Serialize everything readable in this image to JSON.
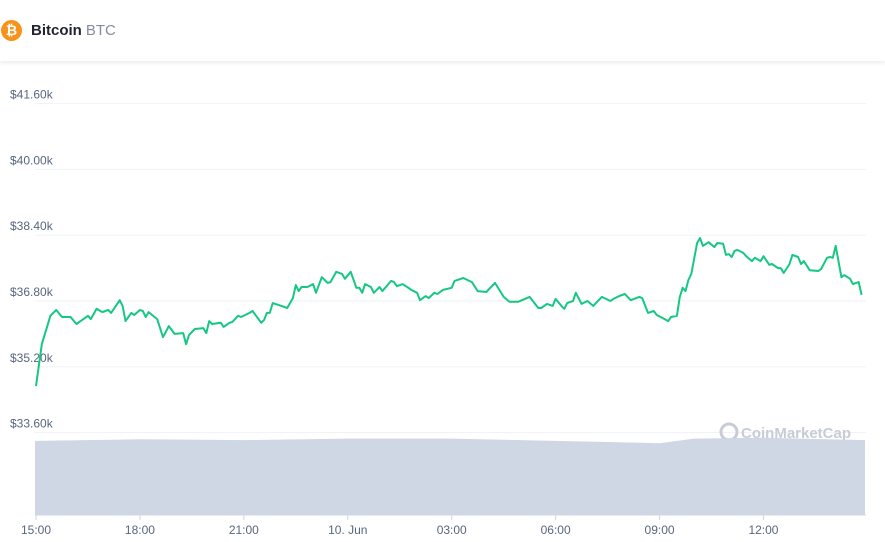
{
  "header": {
    "coin_name": "Bitcoin",
    "coin_symbol": "BTC",
    "coin_icon": "bitcoin-icon",
    "coin_icon_glyph": "₿"
  },
  "watermark": "CoinMarketCap",
  "colors": {
    "price_line": "#16c784",
    "volume_area": "#cfd6e4",
    "grid": "#eff2f5",
    "coin": "#f7931a"
  },
  "chart_data": {
    "type": "line",
    "title": "",
    "xlabel": "",
    "ylabel": "",
    "ylim": [
      33600,
      41600
    ],
    "y_ticks": [
      33600,
      35200,
      36800,
      38400,
      40000,
      41600
    ],
    "y_tick_labels": [
      "$33.60k",
      "$35.20k",
      "$36.80k",
      "$38.40k",
      "$40.00k",
      "$41.60k"
    ],
    "x_ticks": [
      "15:00",
      "18:00",
      "21:00",
      "00:00",
      "03:00",
      "06:00",
      "09:00",
      "12:00"
    ],
    "x_tick_labels": [
      "15:00",
      "18:00",
      "21:00",
      "10. Jun",
      "03:00",
      "06:00",
      "09:00",
      "12:00"
    ],
    "grid": "horizontal",
    "series": [
      {
        "points": [
          [
            "15:00",
            34730
          ],
          [
            "15:10",
            35750
          ],
          [
            "15:25",
            36440
          ],
          [
            "15:35",
            36580
          ],
          [
            "15:45",
            36410
          ],
          [
            "16:00",
            36410
          ],
          [
            "16:10",
            36240
          ],
          [
            "16:20",
            36340
          ],
          [
            "16:30",
            36440
          ],
          [
            "16:35",
            36360
          ],
          [
            "16:45",
            36610
          ],
          [
            "16:55",
            36530
          ],
          [
            "17:05",
            36580
          ],
          [
            "17:10",
            36510
          ],
          [
            "17:15",
            36610
          ],
          [
            "17:25",
            36820
          ],
          [
            "17:30",
            36680
          ],
          [
            "17:35",
            36310
          ],
          [
            "17:45",
            36510
          ],
          [
            "17:50",
            36460
          ],
          [
            "18:00",
            36580
          ],
          [
            "18:05",
            36560
          ],
          [
            "18:10",
            36410
          ],
          [
            "18:15",
            36530
          ],
          [
            "18:30",
            36360
          ],
          [
            "18:40",
            35920
          ],
          [
            "18:50",
            36190
          ],
          [
            "19:00",
            36000
          ],
          [
            "19:15",
            36020
          ],
          [
            "19:20",
            35750
          ],
          [
            "19:25",
            35970
          ],
          [
            "19:35",
            36120
          ],
          [
            "19:50",
            36140
          ],
          [
            "19:55",
            36020
          ],
          [
            "20:00",
            36310
          ],
          [
            "20:05",
            36240
          ],
          [
            "20:20",
            36270
          ],
          [
            "20:25",
            36170
          ],
          [
            "20:35",
            36270
          ],
          [
            "20:40",
            36290
          ],
          [
            "20:50",
            36440
          ],
          [
            "20:55",
            36410
          ],
          [
            "21:10",
            36510
          ],
          [
            "21:15",
            36560
          ],
          [
            "21:30",
            36270
          ],
          [
            "21:35",
            36340
          ],
          [
            "21:40",
            36510
          ],
          [
            "21:45",
            36510
          ],
          [
            "21:50",
            36750
          ],
          [
            "22:05",
            36680
          ],
          [
            "22:15",
            36630
          ],
          [
            "22:25",
            36870
          ],
          [
            "22:30",
            37190
          ],
          [
            "22:35",
            37040
          ],
          [
            "22:40",
            37140
          ],
          [
            "22:50",
            37140
          ],
          [
            "23:00",
            37210
          ],
          [
            "23:05",
            37000
          ],
          [
            "23:15",
            37380
          ],
          [
            "23:25",
            37240
          ],
          [
            "23:30",
            37260
          ],
          [
            "23:40",
            37510
          ],
          [
            "23:50",
            37460
          ],
          [
            "23:55",
            37340
          ],
          [
            "00:05",
            37510
          ],
          [
            "00:15",
            37120
          ],
          [
            "00:20",
            37120
          ],
          [
            "00:25",
            37000
          ],
          [
            "00:30",
            37210
          ],
          [
            "00:40",
            37140
          ],
          [
            "00:45",
            37000
          ],
          [
            "00:55",
            37140
          ],
          [
            "01:00",
            37040
          ],
          [
            "01:15",
            37290
          ],
          [
            "01:20",
            37260
          ],
          [
            "01:25",
            37160
          ],
          [
            "01:35",
            37210
          ],
          [
            "01:45",
            37120
          ],
          [
            "01:50",
            37070
          ],
          [
            "02:00",
            37000
          ],
          [
            "02:05",
            36820
          ],
          [
            "02:15",
            36920
          ],
          [
            "02:20",
            36870
          ],
          [
            "02:30",
            37000
          ],
          [
            "02:35",
            36970
          ],
          [
            "02:45",
            37070
          ],
          [
            "03:00",
            37120
          ],
          [
            "03:05",
            37290
          ],
          [
            "03:20",
            37360
          ],
          [
            "03:35",
            37260
          ],
          [
            "03:45",
            37040
          ],
          [
            "04:00",
            37020
          ],
          [
            "04:15",
            37240
          ],
          [
            "04:30",
            36900
          ],
          [
            "04:40",
            36780
          ],
          [
            "04:55",
            36780
          ],
          [
            "05:15",
            36900
          ],
          [
            "05:30",
            36630
          ],
          [
            "05:35",
            36630
          ],
          [
            "05:45",
            36730
          ],
          [
            "05:55",
            36680
          ],
          [
            "06:00",
            36850
          ],
          [
            "06:10",
            36680
          ],
          [
            "06:15",
            36610
          ],
          [
            "06:20",
            36750
          ],
          [
            "06:30",
            36800
          ],
          [
            "06:35",
            37000
          ],
          [
            "06:45",
            36730
          ],
          [
            "06:55",
            36800
          ],
          [
            "07:05",
            36680
          ],
          [
            "07:20",
            36900
          ],
          [
            "07:35",
            36800
          ],
          [
            "07:40",
            36850
          ],
          [
            "07:50",
            36920
          ],
          [
            "08:00",
            36970
          ],
          [
            "08:10",
            36820
          ],
          [
            "08:25",
            36900
          ],
          [
            "08:30",
            36870
          ],
          [
            "08:40",
            36510
          ],
          [
            "08:50",
            36560
          ],
          [
            "08:55",
            36460
          ],
          [
            "09:05",
            36390
          ],
          [
            "09:15",
            36310
          ],
          [
            "09:20",
            36410
          ],
          [
            "09:30",
            36440
          ],
          [
            "09:35",
            36900
          ],
          [
            "09:40",
            37120
          ],
          [
            "09:45",
            37040
          ],
          [
            "09:50",
            37310
          ],
          [
            "09:55",
            37460
          ],
          [
            "10:05",
            38210
          ],
          [
            "10:10",
            38330
          ],
          [
            "10:15",
            38140
          ],
          [
            "10:25",
            38230
          ],
          [
            "10:35",
            38110
          ],
          [
            "10:40",
            38210
          ],
          [
            "10:50",
            38190
          ],
          [
            "10:55",
            37920
          ],
          [
            "11:00",
            37940
          ],
          [
            "11:05",
            37870
          ],
          [
            "11:10",
            38020
          ],
          [
            "11:15",
            38040
          ],
          [
            "11:25",
            37970
          ],
          [
            "11:30",
            37890
          ],
          [
            "11:40",
            37770
          ],
          [
            "11:45",
            37850
          ],
          [
            "11:55",
            37770
          ],
          [
            "12:00",
            37890
          ],
          [
            "12:10",
            37680
          ],
          [
            "12:15",
            37700
          ],
          [
            "12:25",
            37600
          ],
          [
            "12:30",
            37600
          ],
          [
            "12:35",
            37480
          ],
          [
            "12:45",
            37700
          ],
          [
            "12:50",
            37920
          ],
          [
            "13:00",
            37870
          ],
          [
            "13:05",
            37700
          ],
          [
            "13:10",
            37770
          ],
          [
            "13:20",
            37550
          ],
          [
            "13:35",
            37530
          ],
          [
            "13:40",
            37580
          ],
          [
            "13:50",
            37850
          ],
          [
            "13:55",
            37870
          ],
          [
            "14:00",
            37850
          ],
          [
            "14:05",
            38140
          ],
          [
            "14:15",
            37380
          ],
          [
            "14:20",
            37430
          ],
          [
            "14:30",
            37340
          ],
          [
            "14:35",
            37210
          ],
          [
            "14:45",
            37260
          ],
          [
            "14:50",
            36950
          ]
        ]
      }
    ],
    "volume_relative": {
      "x": [
        "15:00",
        "18:00",
        "21:00",
        "00:00",
        "03:00",
        "06:00",
        "09:00",
        "10:00",
        "12:00",
        "14:50"
      ],
      "values": [
        0.95,
        0.97,
        0.96,
        0.98,
        0.98,
        0.95,
        0.92,
        0.98,
        0.99,
        0.96
      ]
    }
  }
}
